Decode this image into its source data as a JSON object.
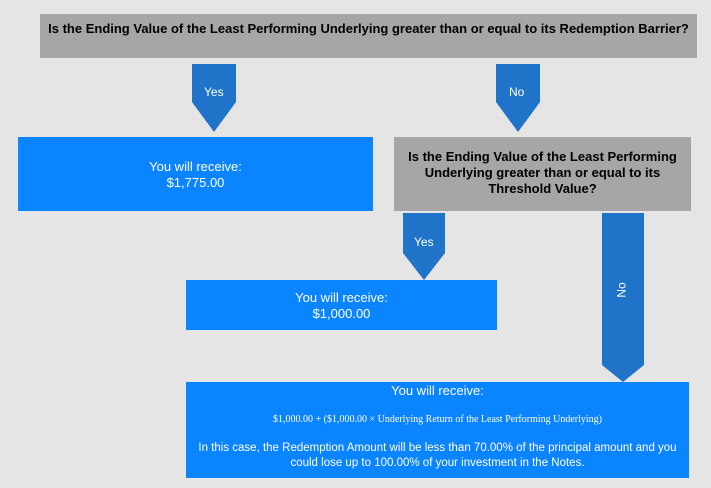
{
  "question1": {
    "text": "Is the Ending Value of the Least Performing Underlying greater than or equal to its Redemption Barrier?"
  },
  "question2": {
    "text": "Is the Ending Value of the Least Performing Underlying greater than or equal to its Threshold Value?"
  },
  "arrows": {
    "yes1": "Yes",
    "no1": "No",
    "yes2": "Yes",
    "no2": "No"
  },
  "outcome1": {
    "heading": "You will receive:",
    "amount": "$1,775.00"
  },
  "outcome2": {
    "heading": "You will receive:",
    "amount": "$1,000.00"
  },
  "outcome3": {
    "heading": "You will receive:",
    "formula": "$1,000.00 + ($1,000.00 × Underlying Return of the Least Performing Underlying)",
    "note": "In this case, the Redemption Amount will be less than 70.00% of the principal amount and you could lose up to 100.00% of your investment in the Notes."
  },
  "colors": {
    "arrow": "#1f73c8",
    "outcome_box": "#0a84ff",
    "question_box": "#a6a6a6",
    "background": "#e5e5e5"
  }
}
